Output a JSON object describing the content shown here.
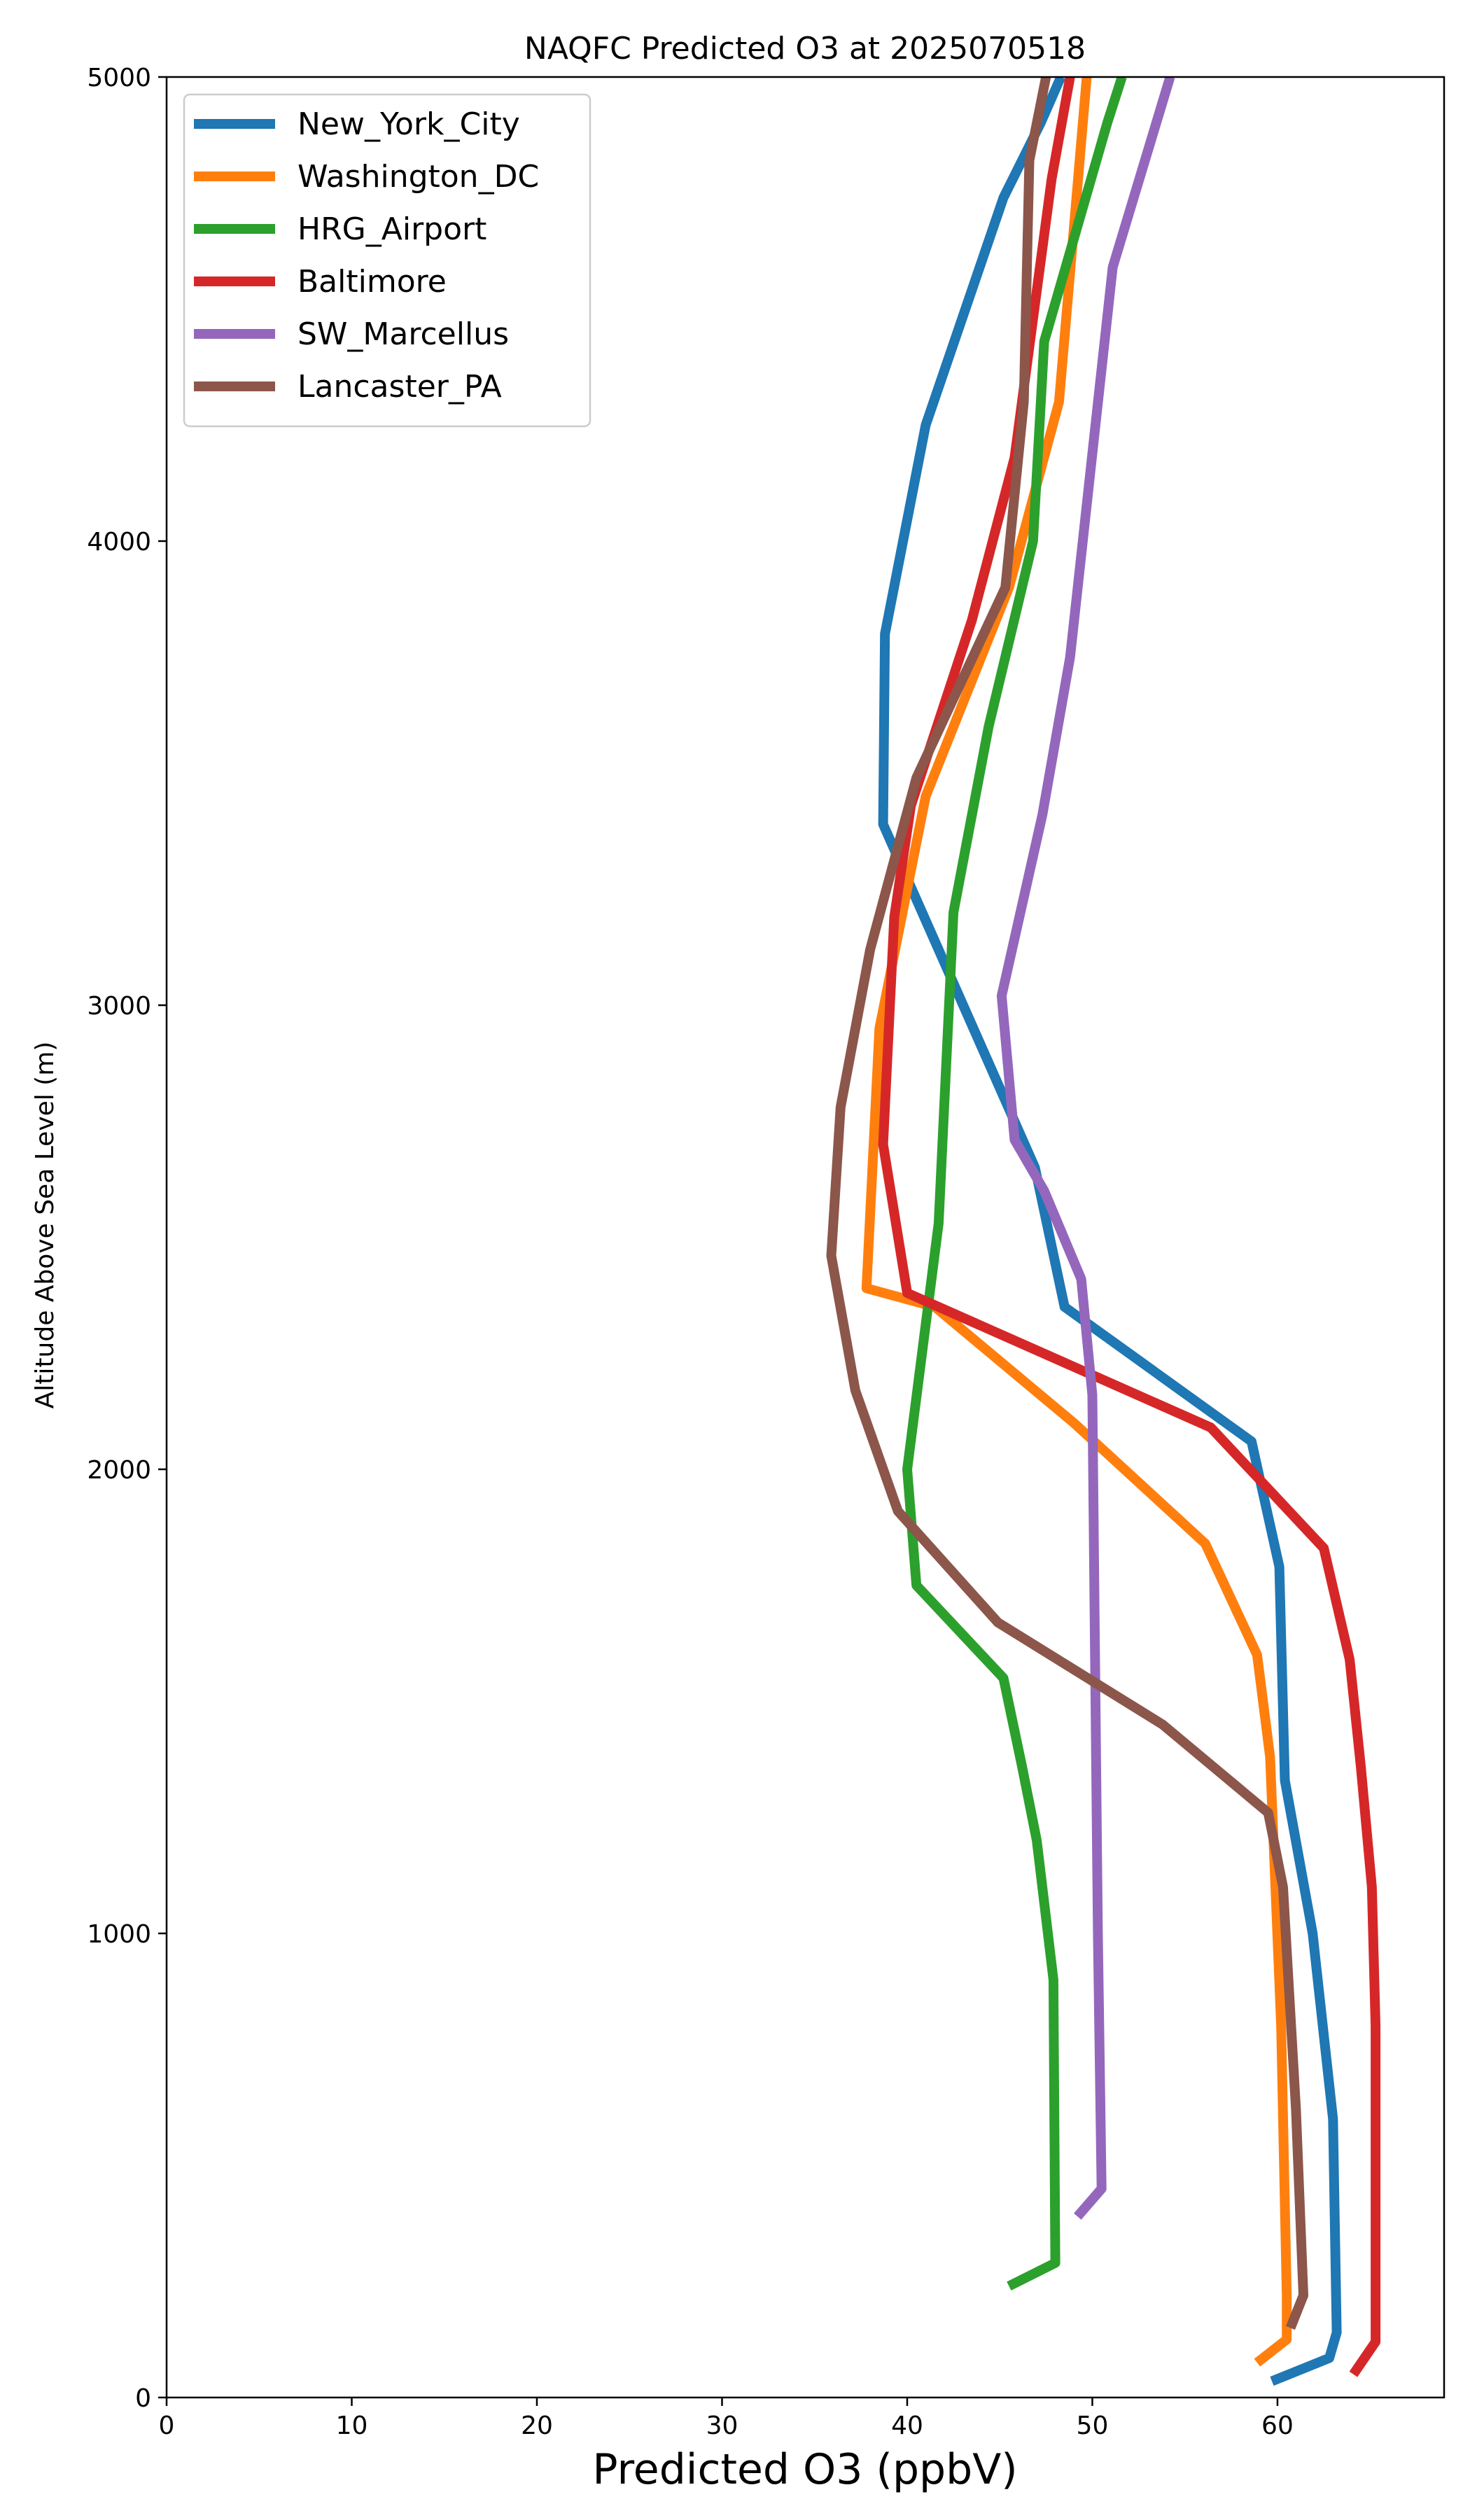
{
  "chart_data": {
    "type": "line",
    "title": "NAQFC Predicted O3 at 2025070518",
    "xlabel": "Predicted O3 (ppbV)",
    "ylabel": "Altitude Above Sea Level (m)",
    "xlim": [
      0,
      69
    ],
    "ylim": [
      0,
      5000
    ],
    "xticks": [
      0,
      10,
      20,
      30,
      40,
      50,
      60
    ],
    "yticks": [
      0,
      1000,
      2000,
      3000,
      4000,
      5000
    ],
    "grid": false,
    "legend_position": "top-left",
    "series": [
      {
        "name": "New_York_City",
        "color": "#1f77b4",
        "points": [
          [
            59.7,
            35
          ],
          [
            62.8,
            85
          ],
          [
            63.2,
            140
          ],
          [
            63.0,
            600
          ],
          [
            61.9,
            1000
          ],
          [
            60.4,
            1330
          ],
          [
            60.1,
            1790
          ],
          [
            58.6,
            2060
          ],
          [
            48.5,
            2350
          ],
          [
            46.9,
            2650
          ],
          [
            38.7,
            3390
          ],
          [
            38.8,
            3800
          ],
          [
            41.0,
            4250
          ],
          [
            45.2,
            4740
          ],
          [
            47.2,
            4900
          ],
          [
            48.3,
            5000
          ]
        ]
      },
      {
        "name": "Washington_DC",
        "color": "#ff7f0e",
        "points": [
          [
            58.9,
            75
          ],
          [
            60.5,
            125
          ],
          [
            60.5,
            220
          ],
          [
            60.2,
            800
          ],
          [
            59.6,
            1380
          ],
          [
            58.9,
            1600
          ],
          [
            56.1,
            1840
          ],
          [
            49.0,
            2100
          ],
          [
            41.5,
            2350
          ],
          [
            37.8,
            2390
          ],
          [
            38.5,
            2950
          ],
          [
            41.0,
            3450
          ],
          [
            45.5,
            3900
          ],
          [
            48.2,
            4300
          ],
          [
            49.7,
            5000
          ]
        ]
      },
      {
        "name": "HRG_Airport",
        "color": "#2ca02c",
        "points": [
          [
            45.5,
            240
          ],
          [
            48.0,
            290
          ],
          [
            47.9,
            900
          ],
          [
            47.0,
            1200
          ],
          [
            46.2,
            1360
          ],
          [
            45.2,
            1550
          ],
          [
            40.5,
            1750
          ],
          [
            40.0,
            2000
          ],
          [
            41.7,
            2530
          ],
          [
            42.5,
            3200
          ],
          [
            44.4,
            3600
          ],
          [
            46.8,
            4000
          ],
          [
            47.4,
            4430
          ],
          [
            50.8,
            4900
          ],
          [
            51.6,
            5000
          ]
        ]
      },
      {
        "name": "Baltimore",
        "color": "#d62728",
        "points": [
          [
            64.1,
            50
          ],
          [
            65.3,
            120
          ],
          [
            65.3,
            800
          ],
          [
            65.1,
            1100
          ],
          [
            64.5,
            1360
          ],
          [
            63.9,
            1590
          ],
          [
            62.5,
            1830
          ],
          [
            56.4,
            2090
          ],
          [
            40.0,
            2380
          ],
          [
            38.7,
            2700
          ],
          [
            39.3,
            3190
          ],
          [
            40.2,
            3430
          ],
          [
            43.5,
            3830
          ],
          [
            45.8,
            4180
          ],
          [
            47.8,
            4780
          ],
          [
            48.8,
            5000
          ]
        ]
      },
      {
        "name": "SW_Marcellus",
        "color": "#9467bd",
        "points": [
          [
            49.2,
            390
          ],
          [
            50.5,
            450
          ],
          [
            50.3,
            1000
          ],
          [
            50.0,
            2160
          ],
          [
            49.4,
            2410
          ],
          [
            47.4,
            2600
          ],
          [
            45.8,
            2710
          ],
          [
            45.1,
            3020
          ],
          [
            47.3,
            3410
          ],
          [
            48.8,
            3750
          ],
          [
            51.1,
            4590
          ],
          [
            54.2,
            5000
          ]
        ]
      },
      {
        "name": "Lancaster_PA",
        "color": "#8c564b",
        "points": [
          [
            60.7,
            150
          ],
          [
            61.4,
            220
          ],
          [
            61.0,
            620
          ],
          [
            60.3,
            1100
          ],
          [
            59.5,
            1260
          ],
          [
            53.8,
            1450
          ],
          [
            44.9,
            1670
          ],
          [
            39.5,
            1910
          ],
          [
            37.2,
            2170
          ],
          [
            35.9,
            2460
          ],
          [
            36.4,
            2780
          ],
          [
            38.0,
            3120
          ],
          [
            40.5,
            3490
          ],
          [
            45.3,
            3900
          ],
          [
            46.3,
            4300
          ],
          [
            46.6,
            4820
          ],
          [
            47.5,
            5000
          ]
        ]
      }
    ]
  }
}
